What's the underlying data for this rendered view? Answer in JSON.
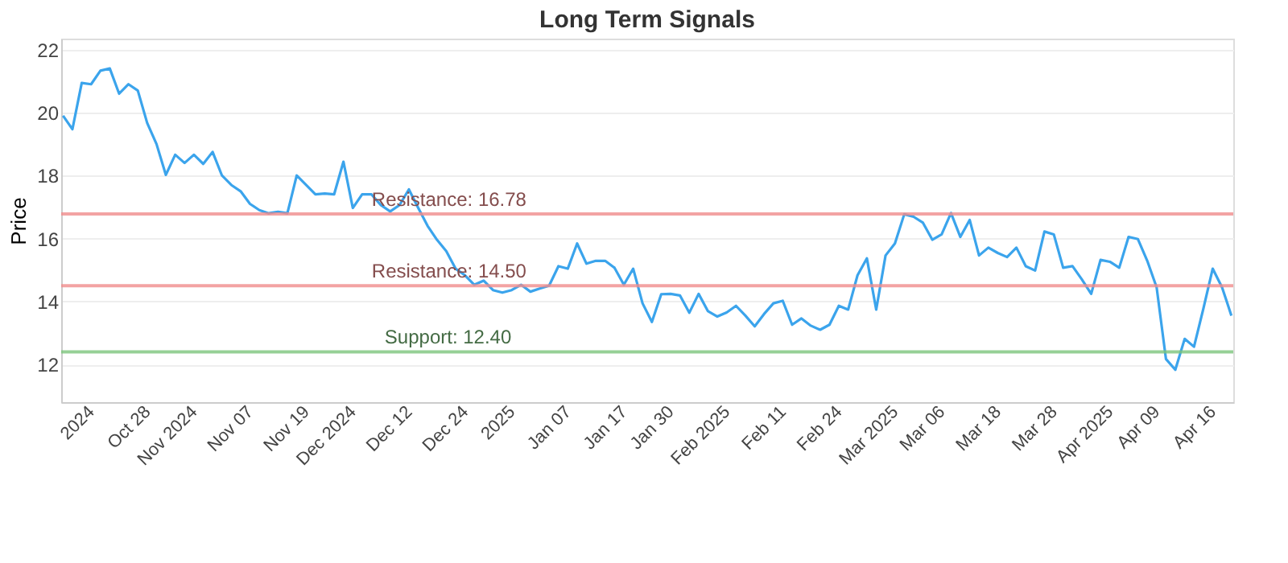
{
  "chart_data": {
    "type": "line",
    "title": "Long Term Signals",
    "ylabel": "Price",
    "categories": [
      null,
      null,
      null,
      "2024",
      null,
      null,
      null,
      null,
      null,
      "Oct 28",
      null,
      null,
      null,
      null,
      "Nov 2024",
      null,
      null,
      null,
      null,
      null,
      "Nov 07",
      null,
      null,
      null,
      null,
      null,
      "Nov 19",
      null,
      null,
      null,
      null,
      "Dec 2024",
      null,
      null,
      null,
      null,
      null,
      "Dec 12",
      null,
      null,
      null,
      null,
      null,
      "Dec 24",
      null,
      null,
      null,
      null,
      "2025",
      null,
      null,
      null,
      null,
      null,
      "Jan 07",
      null,
      null,
      null,
      null,
      null,
      "Jan 17",
      null,
      null,
      null,
      null,
      "Jan 30",
      null,
      null,
      null,
      null,
      null,
      "Feb 2025",
      null,
      null,
      null,
      null,
      null,
      "Feb 11",
      null,
      null,
      null,
      null,
      null,
      "Feb 24",
      null,
      null,
      null,
      null,
      null,
      "Mar 2025",
      null,
      null,
      null,
      null,
      "Mar 06",
      null,
      null,
      null,
      null,
      null,
      "Mar 18",
      null,
      null,
      null,
      null,
      null,
      "Mar 28",
      null,
      null,
      null,
      null,
      null,
      "Apr 2025",
      null,
      null,
      null,
      null,
      "Apr 09",
      null,
      null,
      null,
      null,
      null,
      "Apr 16",
      null,
      null
    ],
    "series": [
      {
        "color": "#3ba4ec",
        "values": [
          19.9,
          19.47,
          20.94,
          20.9,
          21.33,
          21.4,
          20.6,
          20.9,
          20.7,
          19.67,
          19.0,
          18.02,
          18.66,
          18.4,
          18.66,
          18.37,
          18.75,
          18.0,
          17.7,
          17.5,
          17.1,
          16.9,
          16.8,
          16.85,
          16.8,
          18.0,
          17.7,
          17.4,
          17.43,
          17.4,
          18.44,
          16.97,
          17.4,
          17.4,
          17.06,
          16.86,
          17.06,
          17.56,
          16.97,
          16.4,
          15.96,
          15.6,
          15.04,
          14.83,
          14.53,
          14.66,
          14.36,
          14.28,
          14.36,
          14.53,
          14.31,
          14.41,
          14.5,
          15.12,
          15.04,
          15.84,
          15.2,
          15.29,
          15.29,
          15.07,
          14.53,
          15.04,
          13.94,
          13.35,
          14.23,
          14.24,
          14.19,
          13.64,
          14.24,
          13.69,
          13.52,
          13.65,
          13.86,
          13.55,
          13.21,
          13.6,
          13.94,
          14.02,
          13.26,
          13.46,
          13.23,
          13.1,
          13.26,
          13.86,
          13.74,
          14.83,
          15.37,
          13.74,
          15.46,
          15.84,
          16.77,
          16.69,
          16.5,
          15.96,
          16.13,
          16.81,
          16.05,
          16.59,
          15.46,
          15.71,
          15.54,
          15.41,
          15.71,
          15.12,
          14.98,
          16.22,
          16.13,
          15.07,
          15.12,
          14.7,
          14.24,
          15.32,
          15.26,
          15.07,
          16.05,
          15.98,
          15.29,
          14.45,
          12.17,
          11.83,
          12.81,
          12.56,
          13.77,
          15.04,
          14.45,
          13.55
        ]
      }
    ],
    "ylim": [
      10.8,
      22.35
    ],
    "yticks": [
      12,
      14,
      16,
      18,
      20,
      22
    ],
    "grid": "y",
    "marker": "none",
    "line_style": "solid",
    "ref_lines": [
      {
        "axis": "y",
        "value": 16.78,
        "label": "Resistance: 16.78",
        "color": "#f08c8c"
      },
      {
        "axis": "y",
        "value": 14.5,
        "label": "Resistance: 14.50",
        "color": "#f08c8c"
      },
      {
        "axis": "y",
        "value": 12.4,
        "label": "Support: 12.40",
        "color": "#7cc47c"
      }
    ]
  }
}
